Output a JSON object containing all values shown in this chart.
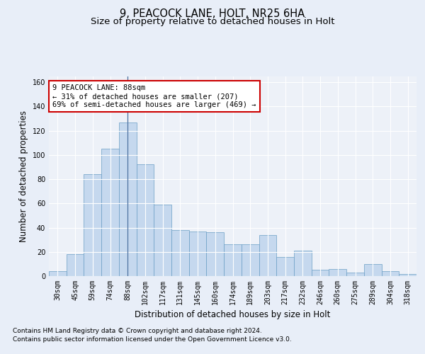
{
  "title1": "9, PEACOCK LANE, HOLT, NR25 6HA",
  "title2": "Size of property relative to detached houses in Holt",
  "xlabel": "Distribution of detached houses by size in Holt",
  "ylabel": "Number of detached properties",
  "footnote1": "Contains HM Land Registry data © Crown copyright and database right 2024.",
  "footnote2": "Contains public sector information licensed under the Open Government Licence v3.0.",
  "categories": [
    "30sqm",
    "45sqm",
    "59sqm",
    "74sqm",
    "88sqm",
    "102sqm",
    "117sqm",
    "131sqm",
    "145sqm",
    "160sqm",
    "174sqm",
    "189sqm",
    "203sqm",
    "217sqm",
    "232sqm",
    "246sqm",
    "260sqm",
    "275sqm",
    "289sqm",
    "304sqm",
    "318sqm"
  ],
  "values": [
    4,
    18,
    84,
    105,
    127,
    92,
    59,
    38,
    37,
    36,
    26,
    26,
    34,
    16,
    21,
    5,
    6,
    3,
    10,
    4,
    2
  ],
  "bar_color": "#c5d8ee",
  "bar_edge_color": "#6a9ec5",
  "vline_x": 4,
  "vline_color": "#4a6fa0",
  "annotation_line1": "9 PEACOCK LANE: 88sqm",
  "annotation_line2": "← 31% of detached houses are smaller (207)",
  "annotation_line3": "69% of semi-detached houses are larger (469) →",
  "annotation_box_color": "#ffffff",
  "annotation_box_edge_color": "#cc0000",
  "ylim": [
    0,
    165
  ],
  "yticks": [
    0,
    20,
    40,
    60,
    80,
    100,
    120,
    140,
    160
  ],
  "bg_color": "#e8eef8",
  "plot_bg_color": "#edf1f8",
  "grid_color": "#ffffff",
  "title1_fontsize": 10.5,
  "title2_fontsize": 9.5,
  "xlabel_fontsize": 8.5,
  "ylabel_fontsize": 8.5,
  "tick_fontsize": 7,
  "annotation_fontsize": 7.5,
  "footnote_fontsize": 6.5
}
